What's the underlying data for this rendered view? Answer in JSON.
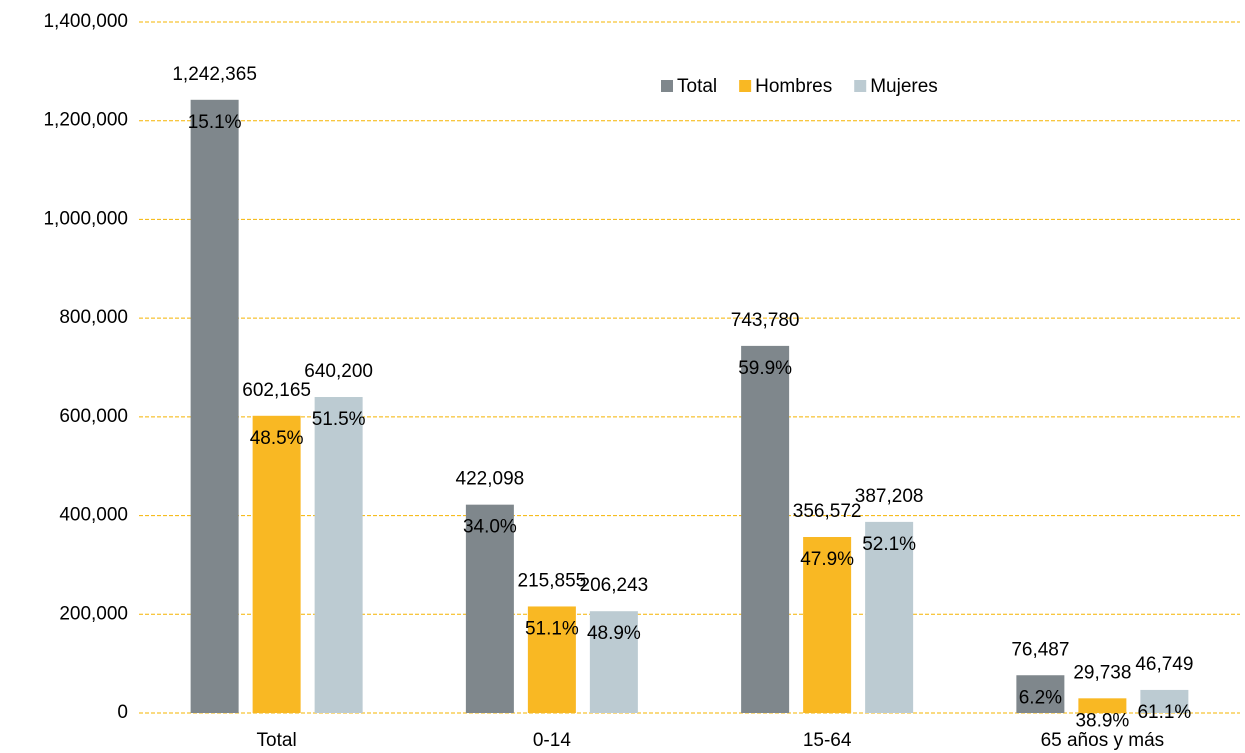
{
  "chart_data": {
    "type": "bar",
    "categories": [
      "Total",
      "0-14",
      "15-64",
      "65 años y más"
    ],
    "series": [
      {
        "name": "Total",
        "color": "#7f878c",
        "values": [
          1242365,
          422098,
          743780,
          76487
        ],
        "value_labels": [
          "1,242,365",
          "422,098",
          "743,780",
          "76,487"
        ],
        "percent_labels": [
          "15.1%",
          "34.0%",
          "59.9%",
          "6.2%"
        ]
      },
      {
        "name": "Hombres",
        "color": "#f9b823",
        "values": [
          602165,
          215855,
          356572,
          29738
        ],
        "value_labels": [
          "602,165",
          "215,855",
          "356,572",
          "29,738"
        ],
        "percent_labels": [
          "48.5%",
          "51.1%",
          "47.9%",
          "38.9%"
        ]
      },
      {
        "name": "Mujeres",
        "color": "#bccbd2",
        "values": [
          640200,
          206243,
          387208,
          46749
        ],
        "value_labels": [
          "640,200",
          "206,243",
          "387,208",
          "46,749"
        ],
        "percent_labels": [
          "51.5%",
          "48.9%",
          "52.1%",
          "61.1%"
        ]
      }
    ],
    "ylim": [
      0,
      1400000
    ],
    "yticks": [
      0,
      {
        "value": 200000,
        "label": "200,000"
      },
      {
        "value": 400000,
        "label": "400,000"
      },
      {
        "value": 600000,
        "label": "600,000"
      },
      {
        "value": 800000,
        "label": "800,000"
      },
      {
        "value": 1000000,
        "label": "1,000,000"
      },
      {
        "value": 1200000,
        "label": "1,200,000"
      },
      {
        "value": 1400000,
        "label": "1,400,000"
      }
    ],
    "grid": true,
    "grid_color": "#f5b400",
    "legend": "top"
  }
}
